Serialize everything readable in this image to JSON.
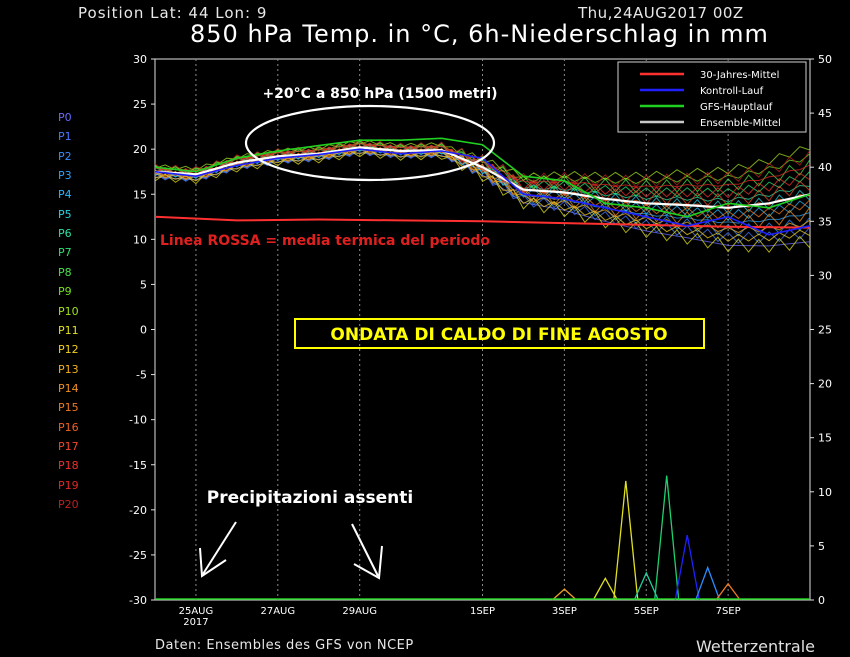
{
  "header": {
    "position_label": "Position  Lat: 44  Lon: 9",
    "run_time": "Thu,24AUG2017  00Z",
    "title": "850 hPa Temp. in °C, 6h-Niederschlag in mm"
  },
  "footer": {
    "source": "Daten: Ensembles des GFS von NCEP",
    "brand": "Wetterzentrale"
  },
  "members": [
    {
      "label": "P0",
      "color": "#6a6aff"
    },
    {
      "label": "P1",
      "color": "#4a78ff"
    },
    {
      "label": "P2",
      "color": "#3a8cff"
    },
    {
      "label": "P3",
      "color": "#2aa2ff"
    },
    {
      "label": "P4",
      "color": "#2ab8ff"
    },
    {
      "label": "P5",
      "color": "#2ad0e0"
    },
    {
      "label": "P6",
      "color": "#2ae0a0"
    },
    {
      "label": "P7",
      "color": "#2ae070"
    },
    {
      "label": "P8",
      "color": "#48e048"
    },
    {
      "label": "P9",
      "color": "#70e020"
    },
    {
      "label": "P10",
      "color": "#a0e020"
    },
    {
      "label": "P11",
      "color": "#e0e020"
    },
    {
      "label": "P12",
      "color": "#f0d020"
    },
    {
      "label": "P13",
      "color": "#f0b020"
    },
    {
      "label": "P14",
      "color": "#f09020"
    },
    {
      "label": "P15",
      "color": "#f07820"
    },
    {
      "label": "P16",
      "color": "#f06020"
    },
    {
      "label": "P17",
      "color": "#f04828"
    },
    {
      "label": "P18",
      "color": "#f03030"
    },
    {
      "label": "P19",
      "color": "#e02828"
    },
    {
      "label": "P20",
      "color": "#c02020"
    }
  ],
  "annotations": {
    "heat_label": "+20°C a 850 hPa (1500 metri)",
    "red_line_label": "Linea ROSSA = media termica del periodo",
    "headline": "ONDATA DI CALDO DI FINE AGOSTO",
    "precip_label": "Precipitazioni assenti"
  },
  "colors": {
    "climate": "#ff3030",
    "control": "#2020ff",
    "gfs_main": "#20d020",
    "ensemble_mean": "#c8c8c8",
    "headline_bg": "#ffff00",
    "red_label": "#e02020"
  },
  "chart_data": {
    "type": "line",
    "left_axis": {
      "label": "",
      "range": [
        -30,
        30
      ],
      "ticks": [
        -30,
        -25,
        -20,
        -15,
        -10,
        -5,
        0,
        5,
        10,
        15,
        20,
        25,
        30
      ]
    },
    "right_axis": {
      "label": "",
      "range": [
        0,
        50
      ],
      "ticks": [
        0,
        5,
        10,
        15,
        20,
        25,
        30,
        35,
        40,
        45,
        50
      ]
    },
    "x_axis": {
      "range_days": [
        "2017-08-24 00Z",
        "2017-09-09 00Z"
      ],
      "tick_labels": [
        "25AUG\n2017",
        "27AUG",
        "29AUG",
        "1SEP",
        "3SEP",
        "5SEP",
        "7SEP"
      ],
      "tick_dates": [
        "2017-08-25",
        "2017-08-27",
        "2017-08-29",
        "2017-09-01",
        "2017-09-03",
        "2017-09-05",
        "2017-09-07"
      ]
    },
    "legend": {
      "placement": "top-right",
      "entries": [
        "30-Jahres-Mittel",
        "Kontroll-Lauf",
        "GFS-Hauptlauf",
        "Ensemble-Mittel"
      ]
    },
    "grid": "vertical dashed",
    "series": [
      {
        "name": "30-Jahres-Mittel",
        "x": [
          "2017-08-24",
          "2017-08-26",
          "2017-08-28",
          "2017-08-30",
          "2017-09-01",
          "2017-09-03",
          "2017-09-05",
          "2017-09-07",
          "2017-09-09"
        ],
        "values": [
          12.5,
          12.1,
          12.2,
          12.1,
          12.0,
          11.8,
          11.6,
          11.4,
          11.3
        ]
      },
      {
        "name": "Ensemble-Mittel",
        "x": [
          "2017-08-24",
          "2017-08-25",
          "2017-08-26",
          "2017-08-27",
          "2017-08-28",
          "2017-08-29",
          "2017-08-30",
          "2017-08-31",
          "2017-09-01",
          "2017-09-02",
          "2017-09-03",
          "2017-09-04",
          "2017-09-05",
          "2017-09-06",
          "2017-09-07",
          "2017-09-08",
          "2017-09-09"
        ],
        "values": [
          17.5,
          17.2,
          18.5,
          19.2,
          19.5,
          20.2,
          19.8,
          19.9,
          18.0,
          15.5,
          15.2,
          14.5,
          14.0,
          13.8,
          13.5,
          14.0,
          15.0
        ]
      },
      {
        "name": "GFS-Hauptlauf",
        "x": [
          "2017-08-24",
          "2017-08-25",
          "2017-08-26",
          "2017-08-27",
          "2017-08-28",
          "2017-08-29",
          "2017-08-30",
          "2017-08-31",
          "2017-09-01",
          "2017-09-02",
          "2017-09-03",
          "2017-09-04",
          "2017-09-05",
          "2017-09-06",
          "2017-09-07",
          "2017-09-08",
          "2017-09-09"
        ],
        "values": [
          18.0,
          17.5,
          19.0,
          19.8,
          20.4,
          21.0,
          21.0,
          21.2,
          20.5,
          17.0,
          16.5,
          14.0,
          13.5,
          12.5,
          14.0,
          13.5,
          15.0
        ]
      },
      {
        "name": "Kontroll-Lauf",
        "x": [
          "2017-08-24",
          "2017-08-25",
          "2017-08-26",
          "2017-08-27",
          "2017-08-28",
          "2017-08-29",
          "2017-08-30",
          "2017-08-31",
          "2017-09-01",
          "2017-09-02",
          "2017-09-03",
          "2017-09-04",
          "2017-09-05",
          "2017-09-06",
          "2017-09-07",
          "2017-09-08",
          "2017-09-09"
        ],
        "values": [
          17.5,
          17.0,
          18.2,
          19.0,
          19.4,
          20.0,
          19.5,
          19.8,
          19.0,
          15.0,
          14.5,
          13.5,
          12.5,
          11.5,
          12.5,
          10.5,
          11.5
        ]
      }
    ],
    "precipitation_mm": {
      "x": [
        "2017-09-03",
        "2017-09-04",
        "2017-09-04 12Z",
        "2017-09-05",
        "2017-09-05 12Z",
        "2017-09-06",
        "2017-09-06 12Z",
        "2017-09-07"
      ],
      "max_values": [
        1.0,
        2.0,
        11.0,
        2.5,
        11.5,
        6.0,
        3.0,
        1.5
      ]
    }
  }
}
